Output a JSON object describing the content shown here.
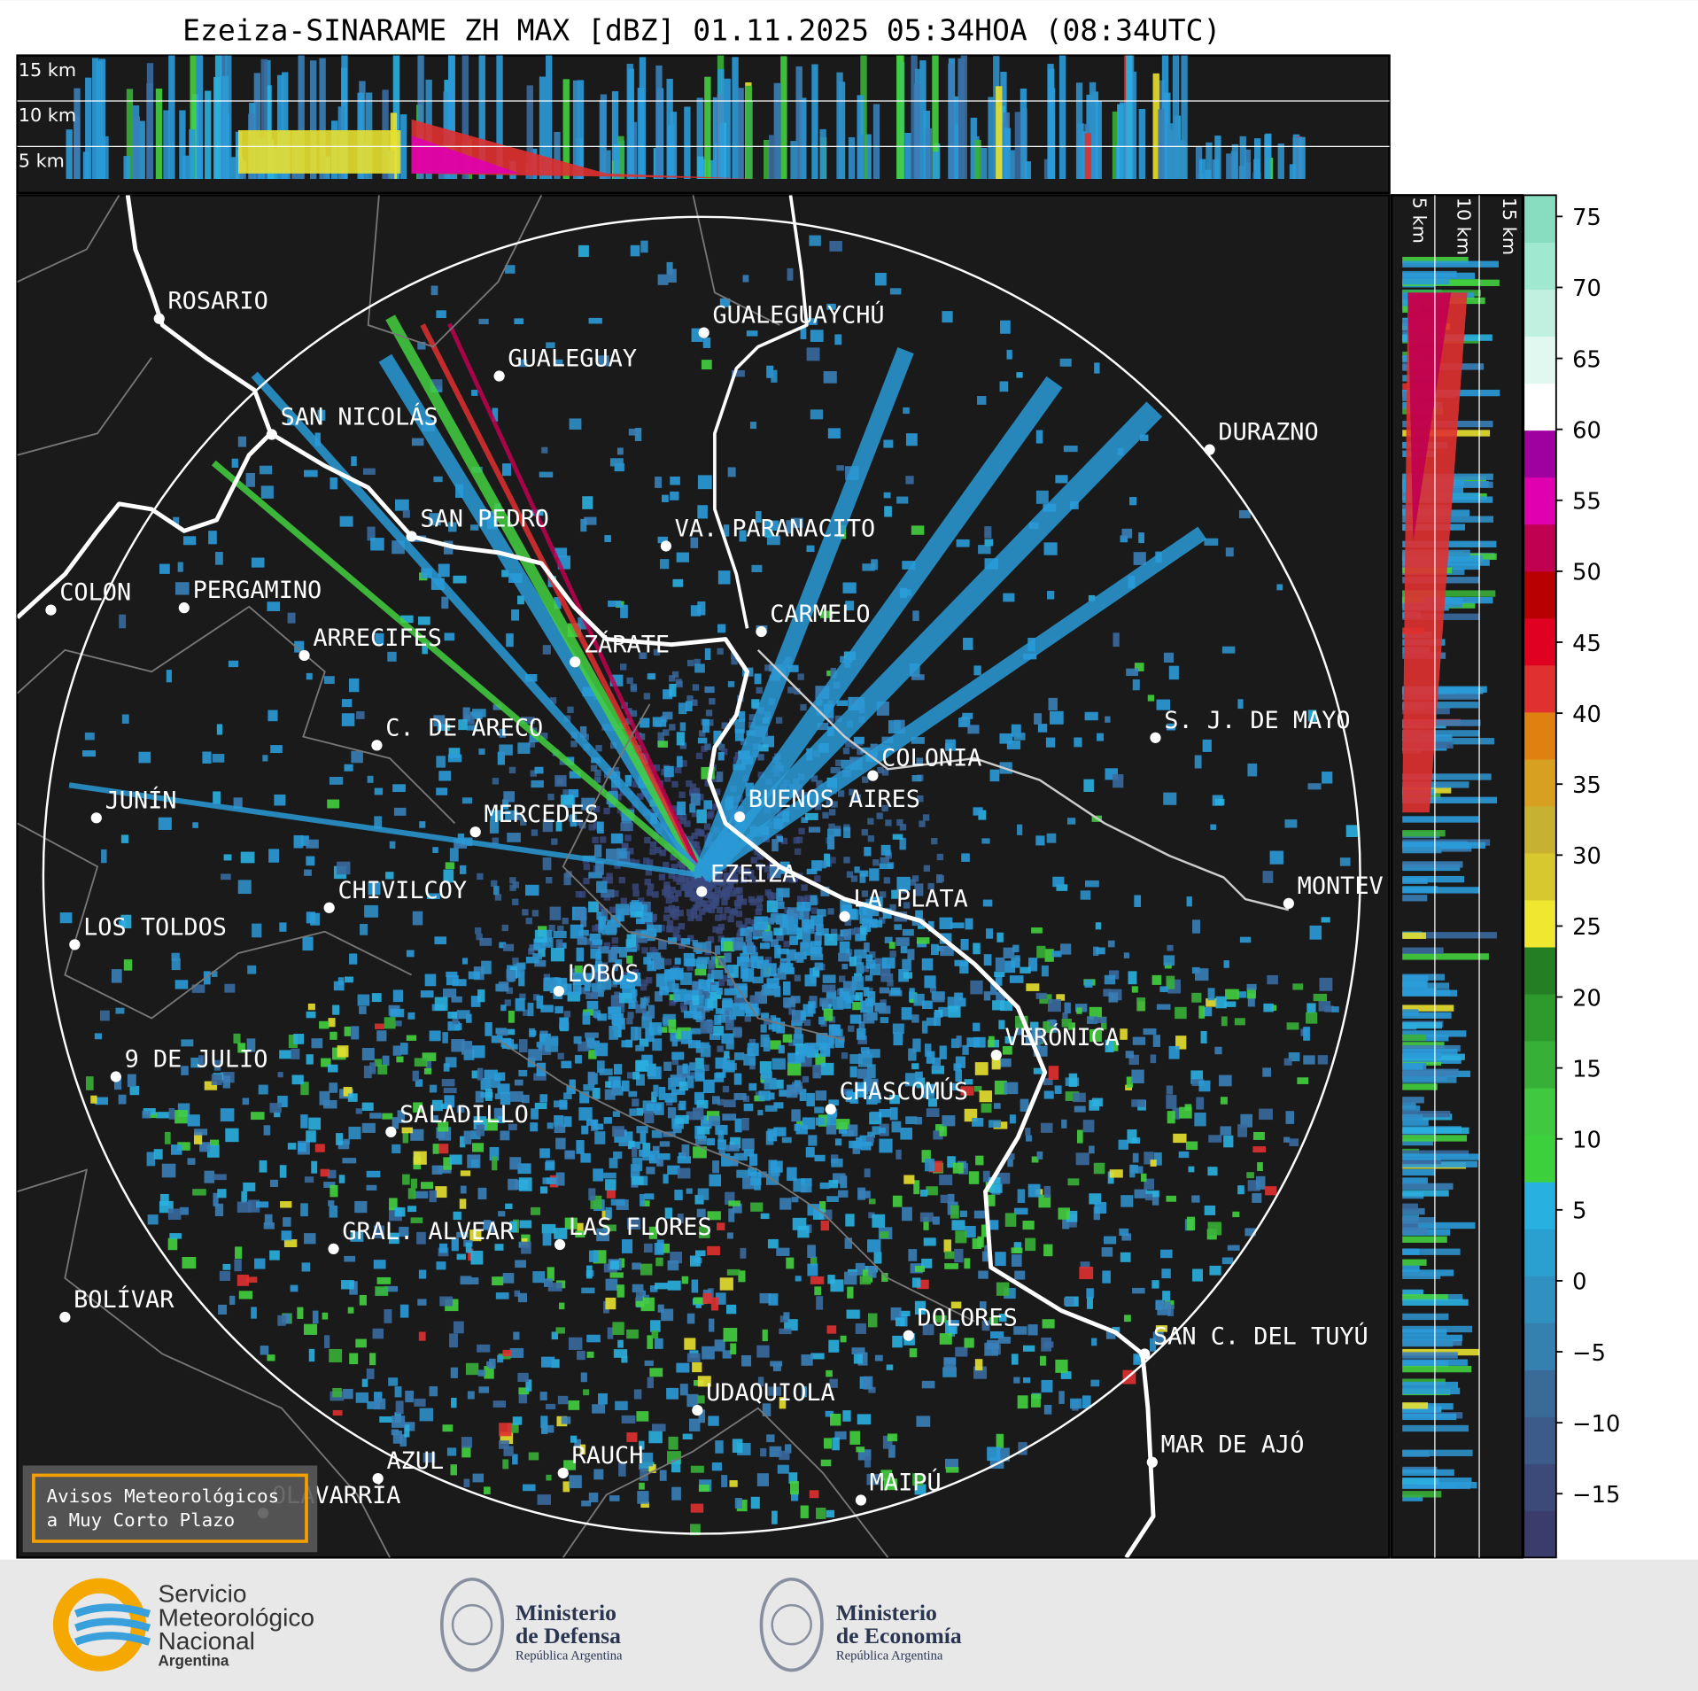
{
  "title": "Ezeiza-SINARAME ZH MAX [dBZ] 01.11.2025 05:34HOA (08:34UTC)",
  "top_panel": {
    "height_labels": [
      "15 km",
      "10 km",
      "5 km"
    ]
  },
  "side_panel": {
    "height_labels": [
      "5 km",
      "10 km",
      "15 km"
    ]
  },
  "colorbar": {
    "clim": [
      -19.5,
      76.5
    ],
    "ticks": [
      75,
      70,
      65,
      60,
      55,
      50,
      45,
      40,
      35,
      30,
      25,
      20,
      15,
      10,
      5,
      0,
      {
        "value": -5,
        "label": "−5"
      },
      {
        "value": -10,
        "label": "−10"
      },
      {
        "value": -15,
        "label": "−15"
      }
    ],
    "colors": [
      "#3a3d6b",
      "#3c4a7a",
      "#3c5a8a",
      "#3a6a98",
      "#3680b0",
      "#3090c0",
      "#2aa0d0",
      "#28b0e0",
      "#3cd03c",
      "#40c840",
      "#38b038",
      "#2e9a2e",
      "#247e24",
      "#f0e830",
      "#d8c830",
      "#c8b030",
      "#d8a020",
      "#e08010",
      "#e03030",
      "#e00020",
      "#b80000",
      "#c00050",
      "#e000b0",
      "#a000a0",
      "#ffffff",
      "#e0f8f0",
      "#c0f0e0",
      "#a0e8d0",
      "#88dcc0"
    ]
  },
  "cities": [
    "ROSARIO",
    "GUALEGUAYCHÚ",
    "GUALEGUAY",
    "SAN NICOLÁS",
    "DURAZNO",
    "SAN PEDRO",
    "VA. PARANACITO",
    "COLON",
    "PERGAMINO",
    "CARMELO",
    "ARRECIFES",
    "ZÁRATE",
    "S. J. DE MAYO",
    "C. DE ARECO",
    "COLONIA",
    "BUENOS AIRES",
    "JUNÍN",
    "MERCEDES",
    "EZEIZA",
    "MONTEV",
    "CHIVILCOY",
    "LA PLATA",
    "LOS TOLDOS",
    "LOBOS",
    "VERÓNICA",
    "9 DE JULIO",
    "CHASCOMÚS",
    "SALADILLO",
    "GRAL. ALVEAR",
    "LAS FLORES",
    "DOLORES",
    "BOLÍVAR",
    "SAN C. DEL TUYÚ",
    "UDAQUIOLA",
    "MAR DE AJÓ",
    "AZUL",
    "RAUCH",
    "OLAVARRÍA",
    "MAIPÚ"
  ],
  "warning_box": [
    "Avisos Meteorológicos",
    "a Muy Corto Plazo"
  ],
  "logos": {
    "smn": [
      "Servicio",
      "Meteorológico",
      "Nacional",
      "Argentina"
    ],
    "defensa": [
      "Ministerio",
      "de Defensa",
      "República Argentina"
    ],
    "economia": [
      "Ministerio",
      "de Economía",
      "República Argentina"
    ]
  }
}
